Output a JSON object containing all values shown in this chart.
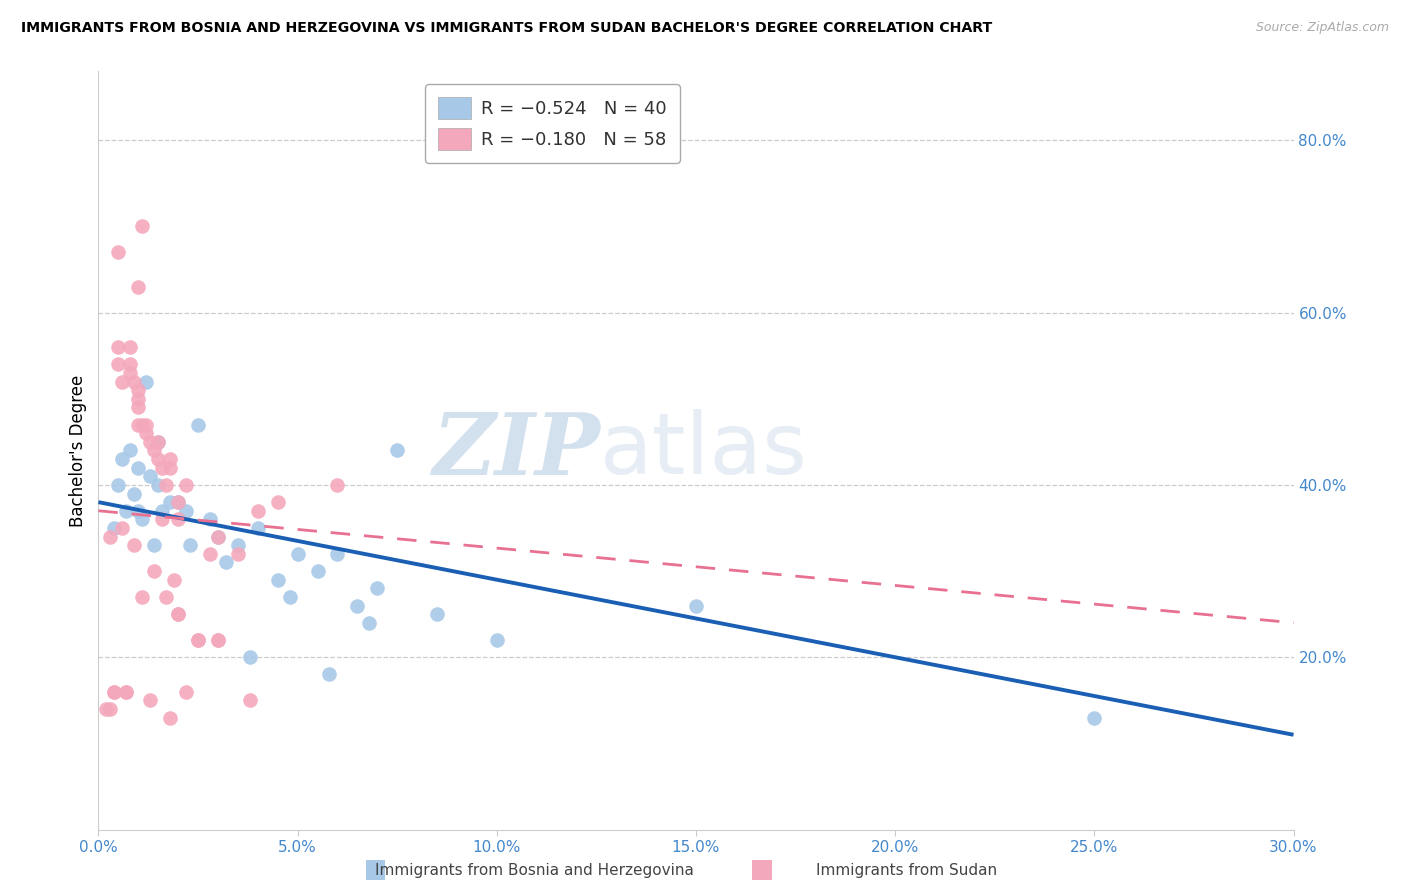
{
  "title": "IMMIGRANTS FROM BOSNIA AND HERZEGOVINA VS IMMIGRANTS FROM SUDAN BACHELOR'S DEGREE CORRELATION CHART",
  "source": "Source: ZipAtlas.com",
  "ylabel": "Bachelor's Degree",
  "x_tick_labels": [
    "0.0%",
    "5.0%",
    "10.0%",
    "15.0%",
    "20.0%",
    "25.0%",
    "30.0%"
  ],
  "x_tick_vals": [
    0,
    5,
    10,
    15,
    20,
    25,
    30
  ],
  "y_tick_labels_right": [
    "20.0%",
    "40.0%",
    "60.0%",
    "80.0%"
  ],
  "y_tick_vals": [
    20,
    40,
    60,
    80
  ],
  "xlim": [
    0,
    30
  ],
  "ylim": [
    0,
    88
  ],
  "color_blue": "#a8c8e8",
  "color_pink": "#f4a8bc",
  "color_blue_line": "#1a5fb4",
  "color_pink_line": "#e87090",
  "color_right_axis": "#4488cc",
  "color_grid": "#cccccc",
  "watermark_zip": "ZIP",
  "watermark_atlas": "atlas",
  "watermark_color": "#c8d8ea",
  "legend_r_blue": "R = -0.524",
  "legend_n_blue": "N = 40",
  "legend_r_pink": "R = -0.180",
  "legend_n_pink": "N = 58",
  "bottom_legend_blue": "Immigrants from Bosnia and Herzegovina",
  "bottom_legend_pink": "Immigrants from Sudan",
  "blue_points_x": [
    0.5,
    0.8,
    1.0,
    1.0,
    1.2,
    1.3,
    1.5,
    1.6,
    1.8,
    2.0,
    2.5,
    3.0,
    3.5,
    4.0,
    5.5,
    6.0,
    7.0,
    8.5,
    10.0,
    15.0,
    25.0,
    0.4,
    0.7,
    1.1,
    1.4,
    2.2,
    3.2,
    4.8,
    6.8,
    7.5,
    0.6,
    0.9,
    1.5,
    2.3,
    4.5,
    5.0,
    6.5,
    3.8,
    5.8,
    2.8
  ],
  "blue_points_y": [
    40,
    44,
    42,
    37,
    52,
    41,
    40,
    37,
    38,
    38,
    47,
    34,
    33,
    35,
    30,
    32,
    28,
    25,
    22,
    26,
    13,
    35,
    37,
    36,
    33,
    37,
    31,
    27,
    24,
    44,
    43,
    39,
    45,
    33,
    29,
    32,
    26,
    20,
    18,
    36
  ],
  "pink_points_x": [
    0.2,
    0.3,
    0.4,
    0.5,
    0.5,
    0.5,
    0.6,
    0.7,
    0.8,
    0.8,
    0.9,
    1.0,
    1.0,
    1.0,
    1.0,
    1.1,
    1.1,
    1.2,
    1.3,
    1.4,
    1.5,
    1.5,
    1.6,
    1.7,
    1.8,
    1.8,
    1.9,
    2.0,
    2.0,
    2.2,
    2.2,
    2.5,
    2.8,
    3.0,
    3.0,
    3.5,
    3.8,
    4.0,
    4.5,
    6.0,
    0.3,
    0.4,
    0.6,
    0.7,
    0.9,
    1.2,
    1.4,
    1.7,
    2.0,
    2.5,
    3.0,
    1.3,
    1.6,
    2.0,
    1.8,
    0.8,
    1.0,
    1.1
  ],
  "pink_points_y": [
    14,
    14,
    16,
    56,
    54,
    67,
    52,
    16,
    54,
    53,
    52,
    51,
    49,
    47,
    63,
    47,
    70,
    46,
    45,
    44,
    43,
    45,
    42,
    40,
    42,
    43,
    29,
    38,
    25,
    40,
    16,
    22,
    32,
    34,
    22,
    32,
    15,
    37,
    38,
    40,
    34,
    16,
    35,
    16,
    33,
    47,
    30,
    27,
    25,
    22,
    22,
    15,
    36,
    36,
    13,
    56,
    50,
    27
  ],
  "blue_trendline_x": [
    0,
    30
  ],
  "blue_trendline_y": [
    38,
    11
  ],
  "pink_trendline_x": [
    0,
    30
  ],
  "pink_trendline_y": [
    37,
    24
  ]
}
